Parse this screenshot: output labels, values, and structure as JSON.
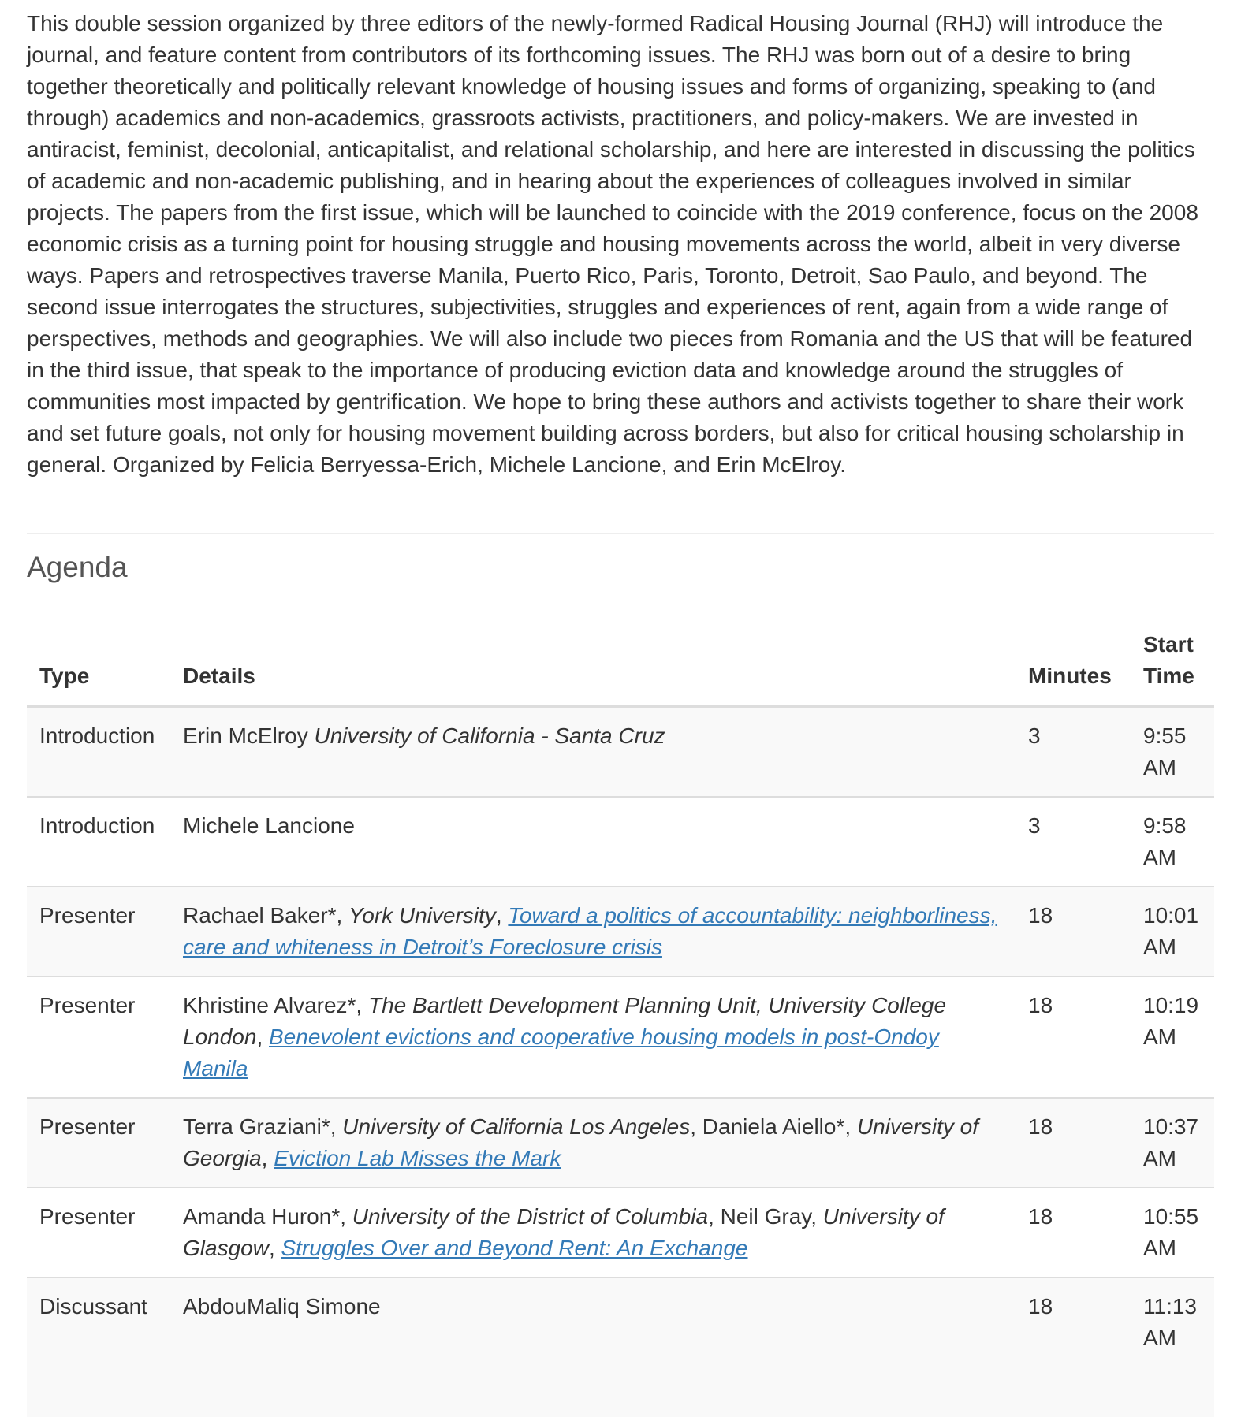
{
  "description": "This double session organized by three editors of the newly-formed Radical Housing Journal (RHJ) will introduce the journal, and feature content from contributors of its forthcoming issues. The RHJ was born out of a desire to bring together theoretically and politically relevant knowledge of housing issues and forms of organizing, speaking to (and through) academics and non-academics, grassroots activists, practitioners, and policy-makers. We are invested in antiracist, feminist, decolonial, anticapitalist, and relational scholarship, and here are interested in discussing the politics of academic and non-academic publishing, and in hearing about the experiences of colleagues involved in similar projects. The papers from the first issue, which will be launched to coincide with the 2019 conference, focus on the 2008 economic crisis as a turning point for housing struggle and housing movements across the world, albeit in very diverse ways. Papers and retrospectives traverse Manila, Puerto Rico, Paris, Toronto, Detroit, Sao Paulo, and beyond. The second issue interrogates the structures, subjectivities, struggles and experiences of rent, again from a wide range of perspectives, methods and geographies. We will also include two pieces from Romania and the US that will be featured in the third issue, that speak to the importance of producing eviction data and knowledge around the struggles of communities most impacted by gentrification. We hope to bring these authors and activists together to share their work and set future goals, not only for housing movement building across borders, but also for critical housing scholarship in general. Organized by Felicia Berryessa-Erich, Michele Lancione, and Erin McElroy.",
  "agenda": {
    "heading": "Agenda",
    "columns": [
      "Type",
      "Details",
      "Minutes",
      "Start Time"
    ],
    "rows": [
      {
        "type": "Introduction",
        "minutes": "3",
        "start_time": "9:55 AM",
        "details": [
          {
            "style": "plain",
            "text": "Erin McElroy "
          },
          {
            "style": "italic",
            "text": "University of California - Santa Cruz"
          }
        ]
      },
      {
        "type": "Introduction",
        "minutes": "3",
        "start_time": "9:58 AM",
        "details": [
          {
            "style": "plain",
            "text": "Michele Lancione"
          }
        ]
      },
      {
        "type": "Presenter",
        "minutes": "18",
        "start_time": "10:01 AM",
        "details": [
          {
            "style": "plain",
            "text": "Rachael Baker*, "
          },
          {
            "style": "italic",
            "text": "York University"
          },
          {
            "style": "plain",
            "text": ", "
          },
          {
            "style": "link",
            "text": "Toward a politics of accountability: neighborliness, care and whiteness in Detroit’s Foreclosure crisis"
          }
        ]
      },
      {
        "type": "Presenter",
        "minutes": "18",
        "start_time": "10:19 AM",
        "details": [
          {
            "style": "plain",
            "text": "Khristine Alvarez*, "
          },
          {
            "style": "italic",
            "text": "The Bartlett Development Planning Unit, University College London"
          },
          {
            "style": "plain",
            "text": ", "
          },
          {
            "style": "link",
            "text": "Benevolent evictions and cooperative housing models in post-Ondoy Manila"
          }
        ]
      },
      {
        "type": "Presenter",
        "minutes": "18",
        "start_time": "10:37 AM",
        "details": [
          {
            "style": "plain",
            "text": "Terra Graziani*, "
          },
          {
            "style": "italic",
            "text": "University of California Los Angeles"
          },
          {
            "style": "plain",
            "text": ", Daniela Aiello*, "
          },
          {
            "style": "italic",
            "text": "University of Georgia"
          },
          {
            "style": "plain",
            "text": ", "
          },
          {
            "style": "link",
            "text": "Eviction Lab Misses the Mark"
          }
        ]
      },
      {
        "type": "Presenter",
        "minutes": "18",
        "start_time": "10:55 AM",
        "details": [
          {
            "style": "plain",
            "text": "Amanda Huron*, "
          },
          {
            "style": "italic",
            "text": "University of the District of Columbia"
          },
          {
            "style": "plain",
            "text": ", Neil Gray, "
          },
          {
            "style": "italic",
            "text": "University of Glasgow"
          },
          {
            "style": "plain",
            "text": ", "
          },
          {
            "style": "link",
            "text": "Struggles Over and Beyond Rent: An Exchange"
          }
        ]
      },
      {
        "type": "Discussant",
        "minutes": "18",
        "start_time": "11:13 AM",
        "details": [
          {
            "style": "plain",
            "text": "AbdouMaliq Simone"
          }
        ]
      }
    ]
  },
  "colors": {
    "link": "#337ab7",
    "body_text": "#333333",
    "heading_text": "#555555",
    "row_stripe": "#f9f9f9",
    "table_border": "#dddddd",
    "divider": "#eeeeee"
  }
}
